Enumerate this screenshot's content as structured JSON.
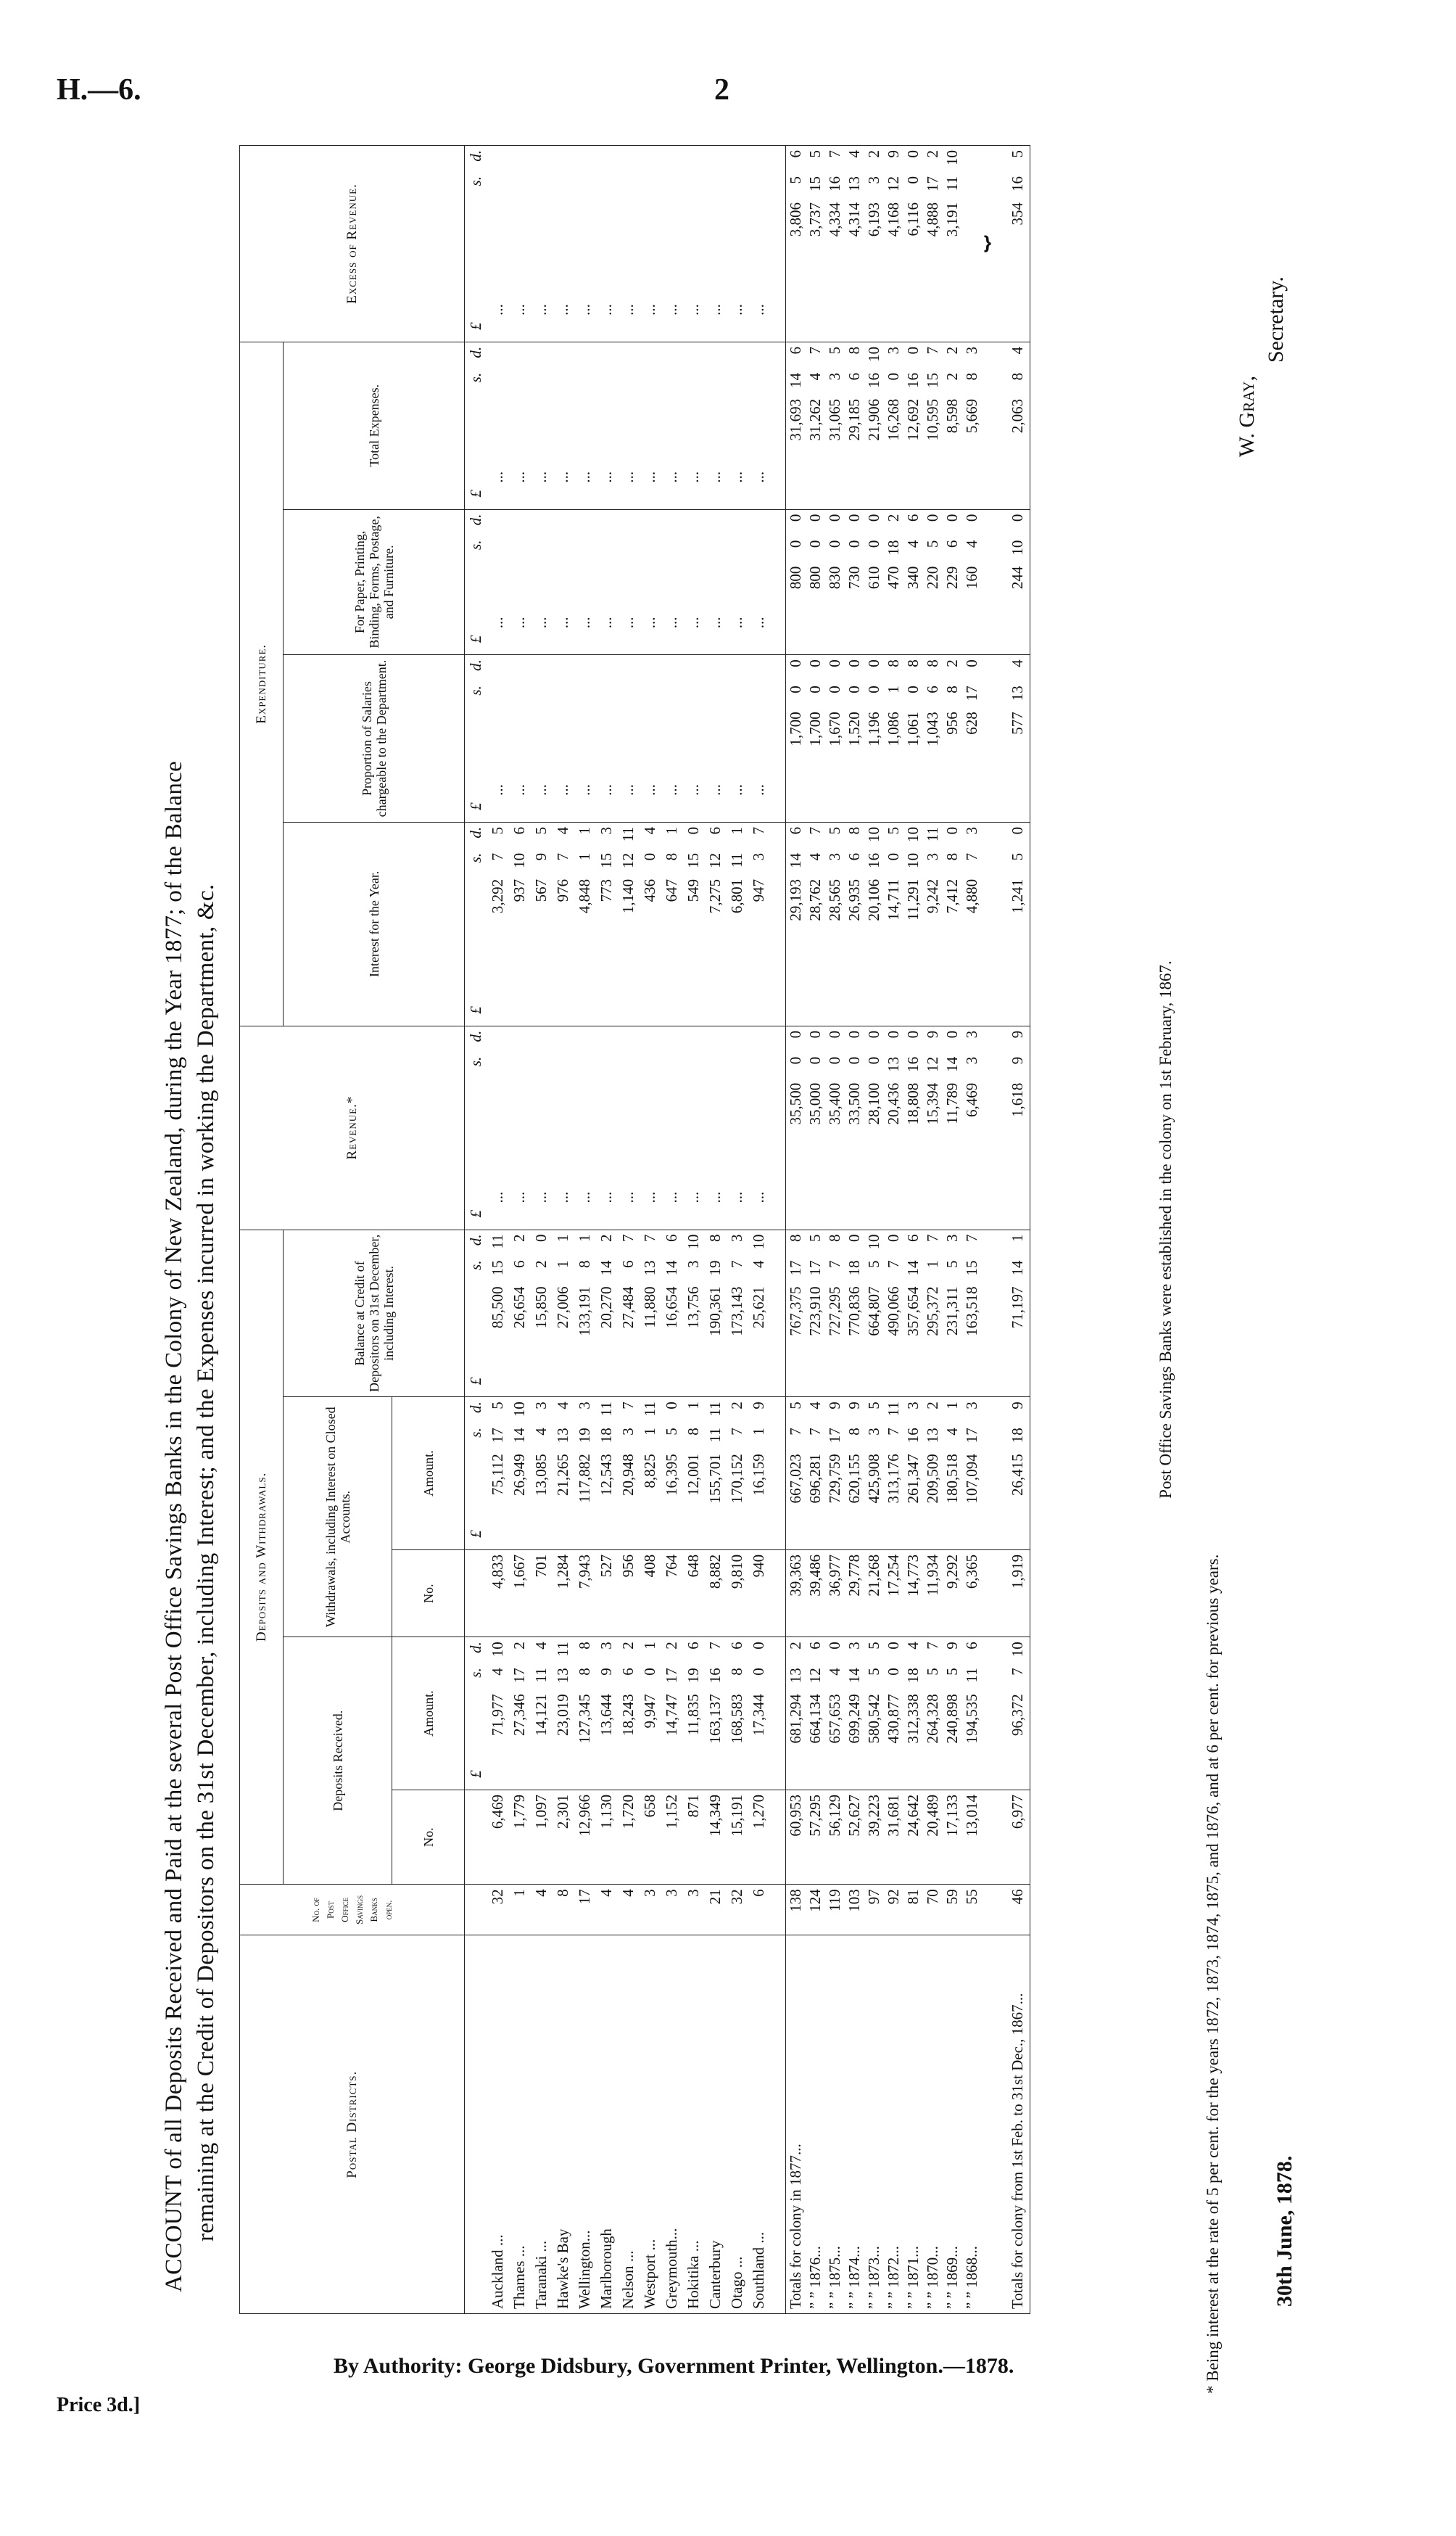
{
  "page_header": {
    "ref": "H.—6.",
    "page_number": "2"
  },
  "title": {
    "line1": "ACCOUNT of all Deposits Received and Paid at the several Post Office Savings Banks in the Colony of New Zealand, during the Year 1877; of the Balance",
    "line2": "remaining at the Credit of Depositors on the 31st December, including Interest; and the Expenses incurred in working the Department, &c."
  },
  "headers": {
    "postal_districts": "Postal Districts.",
    "no_of_banks": "No. of Post Office Savings Banks open.",
    "deposits_and_withdrawals": "Deposits and Withdrawals.",
    "deposits_received": "Deposits Received.",
    "withdrawals": "Withdrawals, including Interest on Closed Accounts.",
    "balance": "Balance at Credit of Depositors on 31st December, including Interest.",
    "revenue": "Revenue.*",
    "expenditure": "Expenditure.",
    "interest": "Interest for the Year.",
    "salaries": "Proportion of Salaries chargeable to the Department.",
    "paper": "For Paper, Printing, Binding, Forms, Postage, and Furniture.",
    "total_expenses": "Total Expenses.",
    "excess_revenue": "Excess of Revenue.",
    "no": "No.",
    "amount": "Amount.",
    "unit_pounds": "£",
    "unit_shillings": "s.",
    "unit_pence": "d."
  },
  "districts": [
    {
      "name": "Auckland ...",
      "po": "32",
      "dep_no": "6,469",
      "dep_amt": [
        "71,977",
        "4",
        "10"
      ],
      "wd_no": "4,833",
      "wd_amt": [
        "75,112",
        "17",
        "5"
      ],
      "balance": [
        "85,500",
        "15",
        "11"
      ],
      "revenue": "...",
      "interest": [
        "3,292",
        "7",
        "5"
      ],
      "salaries": "...",
      "paper": "...",
      "total": "...",
      "excess": "..."
    },
    {
      "name": "Thames ...",
      "po": "1",
      "dep_no": "1,779",
      "dep_amt": [
        "27,346",
        "17",
        "2"
      ],
      "wd_no": "1,667",
      "wd_amt": [
        "26,949",
        "14",
        "10"
      ],
      "balance": [
        "26,654",
        "6",
        "2"
      ],
      "revenue": "...",
      "interest": [
        "937",
        "10",
        "6"
      ],
      "salaries": "...",
      "paper": "...",
      "total": "...",
      "excess": "..."
    },
    {
      "name": "Taranaki ...",
      "po": "4",
      "dep_no": "1,097",
      "dep_amt": [
        "14,121",
        "11",
        "4"
      ],
      "wd_no": "701",
      "wd_amt": [
        "13,085",
        "4",
        "3"
      ],
      "balance": [
        "15,850",
        "2",
        "0"
      ],
      "revenue": "...",
      "interest": [
        "567",
        "9",
        "5"
      ],
      "salaries": "...",
      "paper": "...",
      "total": "...",
      "excess": "..."
    },
    {
      "name": "Hawke's Bay",
      "po": "8",
      "dep_no": "2,301",
      "dep_amt": [
        "23,019",
        "13",
        "11"
      ],
      "wd_no": "1,284",
      "wd_amt": [
        "21,265",
        "13",
        "4"
      ],
      "balance": [
        "27,006",
        "1",
        "1"
      ],
      "revenue": "...",
      "interest": [
        "976",
        "7",
        "4"
      ],
      "salaries": "...",
      "paper": "...",
      "total": "...",
      "excess": "..."
    },
    {
      "name": "Wellington...",
      "po": "17",
      "dep_no": "12,966",
      "dep_amt": [
        "127,345",
        "8",
        "8"
      ],
      "wd_no": "7,943",
      "wd_amt": [
        "117,882",
        "19",
        "3"
      ],
      "balance": [
        "133,191",
        "8",
        "1"
      ],
      "revenue": "...",
      "interest": [
        "4,848",
        "1",
        "1"
      ],
      "salaries": "...",
      "paper": "...",
      "total": "...",
      "excess": "..."
    },
    {
      "name": "Marlborough",
      "po": "4",
      "dep_no": "1,130",
      "dep_amt": [
        "13,644",
        "9",
        "3"
      ],
      "wd_no": "527",
      "wd_amt": [
        "12,543",
        "18",
        "11"
      ],
      "balance": [
        "20,270",
        "14",
        "2"
      ],
      "revenue": "...",
      "interest": [
        "773",
        "15",
        "3"
      ],
      "salaries": "...",
      "paper": "...",
      "total": "...",
      "excess": "..."
    },
    {
      "name": "Nelson ...",
      "po": "4",
      "dep_no": "1,720",
      "dep_amt": [
        "18,243",
        "6",
        "2"
      ],
      "wd_no": "956",
      "wd_amt": [
        "20,948",
        "3",
        "7"
      ],
      "balance": [
        "27,484",
        "6",
        "7"
      ],
      "revenue": "...",
      "interest": [
        "1,140",
        "12",
        "11"
      ],
      "salaries": "...",
      "paper": "...",
      "total": "...",
      "excess": "..."
    },
    {
      "name": "Westport ...",
      "po": "3",
      "dep_no": "658",
      "dep_amt": [
        "9,947",
        "0",
        "1"
      ],
      "wd_no": "408",
      "wd_amt": [
        "8,825",
        "1",
        "11"
      ],
      "balance": [
        "11,880",
        "13",
        "7"
      ],
      "revenue": "...",
      "interest": [
        "436",
        "0",
        "4"
      ],
      "salaries": "...",
      "paper": "...",
      "total": "...",
      "excess": "..."
    },
    {
      "name": "Greymouth...",
      "po": "3",
      "dep_no": "1,152",
      "dep_amt": [
        "14,747",
        "17",
        "2"
      ],
      "wd_no": "764",
      "wd_amt": [
        "16,395",
        "5",
        "0"
      ],
      "balance": [
        "16,654",
        "14",
        "6"
      ],
      "revenue": "...",
      "interest": [
        "647",
        "8",
        "1"
      ],
      "salaries": "...",
      "paper": "...",
      "total": "...",
      "excess": "..."
    },
    {
      "name": "Hokitika ...",
      "po": "3",
      "dep_no": "871",
      "dep_amt": [
        "11,835",
        "19",
        "6"
      ],
      "wd_no": "648",
      "wd_amt": [
        "12,001",
        "8",
        "1"
      ],
      "balance": [
        "13,756",
        "3",
        "10"
      ],
      "revenue": "...",
      "interest": [
        "549",
        "15",
        "0"
      ],
      "salaries": "...",
      "paper": "...",
      "total": "...",
      "excess": "..."
    },
    {
      "name": "Canterbury",
      "po": "21",
      "dep_no": "14,349",
      "dep_amt": [
        "163,137",
        "16",
        "7"
      ],
      "wd_no": "8,882",
      "wd_amt": [
        "155,701",
        "11",
        "11"
      ],
      "balance": [
        "190,361",
        "19",
        "8"
      ],
      "revenue": "...",
      "interest": [
        "7,275",
        "12",
        "6"
      ],
      "salaries": "...",
      "paper": "...",
      "total": "...",
      "excess": "..."
    },
    {
      "name": "Otago ...",
      "po": "32",
      "dep_no": "15,191",
      "dep_amt": [
        "168,583",
        "8",
        "6"
      ],
      "wd_no": "9,810",
      "wd_amt": [
        "170,152",
        "7",
        "2"
      ],
      "balance": [
        "173,143",
        "7",
        "3"
      ],
      "revenue": "...",
      "interest": [
        "6,801",
        "11",
        "1"
      ],
      "salaries": "...",
      "paper": "...",
      "total": "...",
      "excess": "..."
    },
    {
      "name": "Southland ...",
      "po": "6",
      "dep_no": "1,270",
      "dep_amt": [
        "17,344",
        "0",
        "0"
      ],
      "wd_no": "940",
      "wd_amt": [
        "16,159",
        "1",
        "9"
      ],
      "balance": [
        "25,621",
        "4",
        "10"
      ],
      "revenue": "...",
      "interest": [
        "947",
        "3",
        "7"
      ],
      "salaries": "...",
      "paper": "...",
      "total": "...",
      "excess": "..."
    }
  ],
  "totals": [
    {
      "name": "Totals for colony in 1877...",
      "po": "138",
      "dep_no": "60,953",
      "dep_amt": [
        "681,294",
        "13",
        "2"
      ],
      "wd_no": "39,363",
      "wd_amt": [
        "667,023",
        "7",
        "5"
      ],
      "balance": [
        "767,375",
        "17",
        "8"
      ],
      "revenue": [
        "35,500",
        "0",
        "0"
      ],
      "interest": [
        "29,193",
        "14",
        "6"
      ],
      "salaries": [
        "1,700",
        "0",
        "0"
      ],
      "paper": [
        "800",
        "0",
        "0"
      ],
      "total": [
        "31,693",
        "14",
        "6"
      ],
      "excess": [
        "3,806",
        "5",
        "6"
      ]
    },
    {
      "name": "” ” 1876...",
      "po": "124",
      "dep_no": "57,295",
      "dep_amt": [
        "664,134",
        "12",
        "6"
      ],
      "wd_no": "39,486",
      "wd_amt": [
        "696,281",
        "7",
        "4"
      ],
      "balance": [
        "723,910",
        "17",
        "5"
      ],
      "revenue": [
        "35,000",
        "0",
        "0"
      ],
      "interest": [
        "28,762",
        "4",
        "7"
      ],
      "salaries": [
        "1,700",
        "0",
        "0"
      ],
      "paper": [
        "800",
        "0",
        "0"
      ],
      "total": [
        "31,262",
        "4",
        "7"
      ],
      "excess": [
        "3,737",
        "15",
        "5"
      ]
    },
    {
      "name": "” ” 1875...",
      "po": "119",
      "dep_no": "56,129",
      "dep_amt": [
        "657,653",
        "4",
        "0"
      ],
      "wd_no": "36,977",
      "wd_amt": [
        "729,759",
        "17",
        "9"
      ],
      "balance": [
        "727,295",
        "7",
        "8"
      ],
      "revenue": [
        "35,400",
        "0",
        "0"
      ],
      "interest": [
        "28,565",
        "3",
        "5"
      ],
      "salaries": [
        "1,670",
        "0",
        "0"
      ],
      "paper": [
        "830",
        "0",
        "0"
      ],
      "total": [
        "31,065",
        "3",
        "5"
      ],
      "excess": [
        "4,334",
        "16",
        "7"
      ]
    },
    {
      "name": "” ” 1874...",
      "po": "103",
      "dep_no": "52,627",
      "dep_amt": [
        "699,249",
        "14",
        "3"
      ],
      "wd_no": "29,778",
      "wd_amt": [
        "620,155",
        "8",
        "9"
      ],
      "balance": [
        "770,836",
        "18",
        "0"
      ],
      "revenue": [
        "33,500",
        "0",
        "0"
      ],
      "interest": [
        "26,935",
        "6",
        "8"
      ],
      "salaries": [
        "1,520",
        "0",
        "0"
      ],
      "paper": [
        "730",
        "0",
        "0"
      ],
      "total": [
        "29,185",
        "6",
        "8"
      ],
      "excess": [
        "4,314",
        "13",
        "4"
      ]
    },
    {
      "name": "” ” 1873...",
      "po": "97",
      "dep_no": "39,223",
      "dep_amt": [
        "580,542",
        "5",
        "5"
      ],
      "wd_no": "21,268",
      "wd_amt": [
        "425,908",
        "3",
        "5"
      ],
      "balance": [
        "664,807",
        "5",
        "10"
      ],
      "revenue": [
        "28,100",
        "0",
        "0"
      ],
      "interest": [
        "20,106",
        "16",
        "10"
      ],
      "salaries": [
        "1,196",
        "0",
        "0"
      ],
      "paper": [
        "610",
        "0",
        "0"
      ],
      "total": [
        "21,906",
        "16",
        "10"
      ],
      "excess": [
        "6,193",
        "3",
        "2"
      ]
    },
    {
      "name": "” ” 1872...",
      "po": "92",
      "dep_no": "31,681",
      "dep_amt": [
        "430,877",
        "0",
        "0"
      ],
      "wd_no": "17,254",
      "wd_amt": [
        "313,176",
        "7",
        "11"
      ],
      "balance": [
        "490,066",
        "7",
        "0"
      ],
      "revenue": [
        "20,436",
        "13",
        "0"
      ],
      "interest": [
        "14,711",
        "0",
        "5"
      ],
      "salaries": [
        "1,086",
        "1",
        "8"
      ],
      "paper": [
        "470",
        "18",
        "2"
      ],
      "total": [
        "16,268",
        "0",
        "3"
      ],
      "excess": [
        "4,168",
        "12",
        "9"
      ]
    },
    {
      "name": "” ” 1871...",
      "po": "81",
      "dep_no": "24,642",
      "dep_amt": [
        "312,338",
        "18",
        "4"
      ],
      "wd_no": "14,773",
      "wd_amt": [
        "261,347",
        "16",
        "3"
      ],
      "balance": [
        "357,654",
        "14",
        "6"
      ],
      "revenue": [
        "18,808",
        "16",
        "0"
      ],
      "interest": [
        "11,291",
        "10",
        "10"
      ],
      "salaries": [
        "1,061",
        "0",
        "8"
      ],
      "paper": [
        "340",
        "4",
        "6"
      ],
      "total": [
        "12,692",
        "16",
        "0"
      ],
      "excess": [
        "6,116",
        "0",
        "0"
      ]
    },
    {
      "name": "” ” 1870...",
      "po": "70",
      "dep_no": "20,489",
      "dep_amt": [
        "264,328",
        "5",
        "7"
      ],
      "wd_no": "11,934",
      "wd_amt": [
        "209,509",
        "13",
        "2"
      ],
      "balance": [
        "295,372",
        "1",
        "7"
      ],
      "revenue": [
        "15,394",
        "12",
        "9"
      ],
      "interest": [
        "9,242",
        "3",
        "11"
      ],
      "salaries": [
        "1,043",
        "6",
        "8"
      ],
      "paper": [
        "220",
        "5",
        "0"
      ],
      "total": [
        "10,595",
        "15",
        "7"
      ],
      "excess": [
        "4,888",
        "17",
        "2"
      ]
    },
    {
      "name": "” ” 1869...",
      "po": "59",
      "dep_no": "17,133",
      "dep_amt": [
        "240,898",
        "5",
        "9"
      ],
      "wd_no": "9,292",
      "wd_amt": [
        "180,518",
        "4",
        "1"
      ],
      "balance": [
        "231,311",
        "5",
        "3"
      ],
      "revenue": [
        "11,789",
        "14",
        "0"
      ],
      "interest": [
        "7,412",
        "8",
        "0"
      ],
      "salaries": [
        "956",
        "8",
        "2"
      ],
      "paper": [
        "229",
        "6",
        "0"
      ],
      "total": [
        "8,598",
        "2",
        "2"
      ],
      "excess": [
        "3,191",
        "11",
        "10"
      ]
    },
    {
      "name": "” ” 1868...",
      "po": "55",
      "dep_no": "13,014",
      "dep_amt": [
        "194,535",
        "11",
        "6"
      ],
      "wd_no": "6,365",
      "wd_amt": [
        "107,094",
        "17",
        "3"
      ],
      "balance": [
        "163,518",
        "15",
        "7"
      ],
      "revenue": [
        "6,469",
        "3",
        "3"
      ],
      "interest": [
        "4,880",
        "7",
        "3"
      ],
      "salaries": [
        "628",
        "17",
        "0"
      ],
      "paper": [
        "160",
        "4",
        "0"
      ],
      "total": [
        "5,669",
        "8",
        "3"
      ],
      "excess": null
    },
    {
      "name": "Totals for colony from 1st Feb. to 31st Dec., 1867...",
      "po": "46",
      "dep_no": "6,977",
      "dep_amt": [
        "96,372",
        "7",
        "10"
      ],
      "wd_no": "1,919",
      "wd_amt": [
        "26,415",
        "18",
        "9"
      ],
      "balance": [
        "71,197",
        "14",
        "1"
      ],
      "revenue": [
        "1,618",
        "9",
        "9"
      ],
      "interest": [
        "1,241",
        "5",
        "0"
      ],
      "salaries": [
        "577",
        "13",
        "4"
      ],
      "paper": [
        "244",
        "10",
        "0"
      ],
      "total": [
        "2,063",
        "8",
        "4"
      ],
      "excess": [
        "354",
        "16",
        "5"
      ]
    }
  ],
  "footnotes": {
    "established": "Post Office Savings Banks were established in the colony on 1st February, 1867.",
    "interest_rate": "* Being interest at the rate of 5 per cent. for the years 1872, 1873, 1874, 1875, and 1876, and at 6 per cent. for previous years."
  },
  "signature": {
    "date": "30th June, 1878.",
    "name": "W. Gray,",
    "role": "Secretary."
  },
  "imprint": {
    "authority": "By Authority: George Didsbury, Government Printer, Wellington.—1878.",
    "price": "Price 3d.]"
  }
}
